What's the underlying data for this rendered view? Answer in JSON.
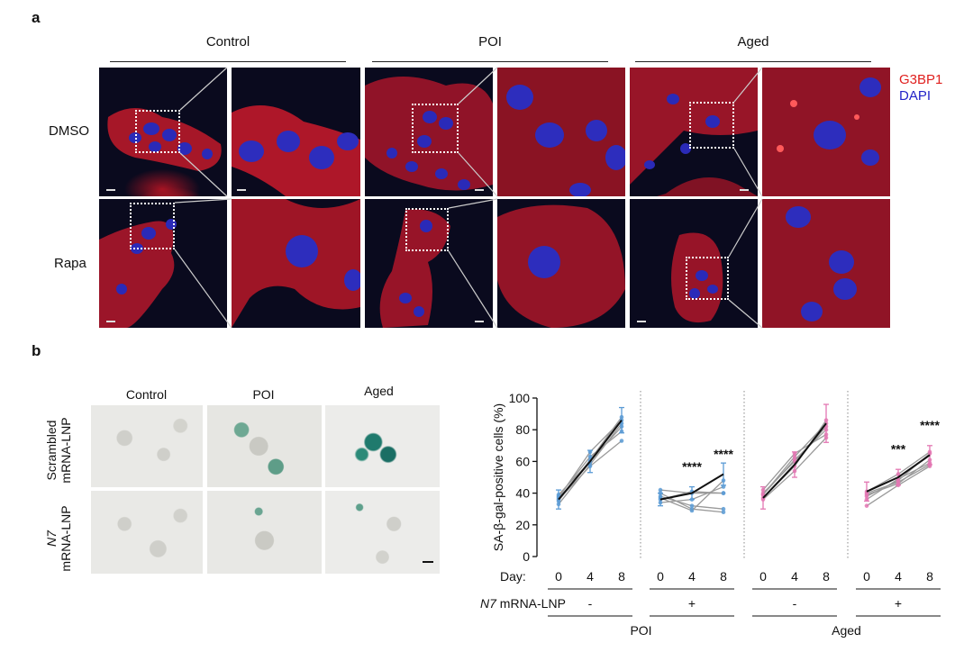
{
  "panel_a": {
    "letter": "a",
    "groups": [
      "Control",
      "POI",
      "Aged"
    ],
    "rows": [
      "DMSO",
      "Rapa"
    ],
    "legend": [
      {
        "label": "G3BP1",
        "color": "#e0201e"
      },
      {
        "label": "DAPI",
        "color": "#2323c8"
      }
    ]
  },
  "panel_b": {
    "letter": "b",
    "columns": [
      "Control",
      "POI",
      "Aged"
    ],
    "rows": [
      {
        "line1": "Scrambled",
        "line2": "mRNA-LNP"
      },
      {
        "line1": "N7",
        "line2": "mRNA-LNP"
      }
    ]
  },
  "chart_data": {
    "type": "line",
    "ylabel": "SA-β-gal-positive cells (%)",
    "ylim": [
      0,
      100
    ],
    "yticks": [
      0,
      20,
      40,
      60,
      80,
      100
    ],
    "day_label": "Day:",
    "n7_label_italic": "N7",
    "n7_label_rest": " mRNA-LNP",
    "group_names": [
      "POI",
      "Aged"
    ],
    "colors": {
      "blue": "#5b9bd5",
      "pink": "#e377b3",
      "mean": "#111111",
      "gray": "#9a9a9a"
    },
    "groups": [
      {
        "days": [
          0,
          4,
          8
        ],
        "treatment": "-",
        "color": "blue",
        "mean": [
          36,
          60,
          86
        ],
        "individual": [
          [
            33,
            58,
            84
          ],
          [
            35,
            61,
            88
          ],
          [
            38,
            63,
            79
          ],
          [
            36,
            57,
            73
          ],
          [
            37,
            66,
            86
          ],
          [
            39,
            60,
            82
          ]
        ],
        "errors": [
          6,
          7,
          8
        ],
        "stars": [
          "",
          "",
          ""
        ]
      },
      {
        "days": [
          0,
          4,
          8
        ],
        "treatment": "+",
        "color": "blue",
        "mean": [
          36,
          40,
          52
        ],
        "individual": [
          [
            42,
            40,
            40
          ],
          [
            38,
            32,
            30
          ],
          [
            40,
            30,
            28
          ],
          [
            34,
            36,
            44
          ],
          [
            36,
            41,
            40
          ],
          [
            37,
            29,
            48
          ]
        ],
        "errors": [
          4,
          4,
          7
        ],
        "stars": [
          "",
          "****",
          "****"
        ]
      },
      {
        "days": [
          0,
          4,
          8
        ],
        "treatment": "-",
        "color": "pink",
        "mean": [
          37,
          58,
          84
        ],
        "individual": [
          [
            40,
            60,
            82
          ],
          [
            42,
            65,
            77
          ],
          [
            36,
            54,
            75
          ],
          [
            39,
            63,
            84
          ],
          [
            37,
            57,
            86
          ],
          [
            39,
            61,
            80
          ]
        ],
        "errors": [
          7,
          8,
          12
        ],
        "stars": [
          "",
          "",
          ""
        ]
      },
      {
        "days": [
          0,
          4,
          8
        ],
        "treatment": "+",
        "color": "pink",
        "mean": [
          41,
          50,
          64
        ],
        "individual": [
          [
            36,
            49,
            59
          ],
          [
            39,
            46,
            61
          ],
          [
            32,
            45,
            57
          ],
          [
            38,
            48,
            65
          ],
          [
            41,
            52,
            66
          ],
          [
            40,
            47,
            58
          ]
        ],
        "errors": [
          6,
          5,
          6
        ],
        "stars": [
          "",
          "***",
          "****"
        ]
      }
    ]
  }
}
